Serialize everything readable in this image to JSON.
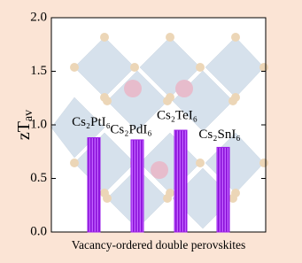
{
  "chart_data": {
    "type": "bar",
    "y_label": {
      "main": "zT",
      "sub": "av"
    },
    "x_label": "Vacancy-ordered double perovskites",
    "categories": [
      "Cs₂PtI₆",
      "Cs₂PdI₆",
      "Cs₂TeI₆",
      "Cs₂SnI₆"
    ],
    "values": [
      0.88,
      0.86,
      0.95,
      0.79
    ],
    "color": "#9b1fe8",
    "ylim": [
      0,
      2.0
    ],
    "yticks": [
      {
        "value": 0,
        "label": "0.0"
      },
      {
        "value": 0.5,
        "label": "0.5"
      },
      {
        "value": 1.0,
        "label": "1.0"
      },
      {
        "value": 1.5,
        "label": "1.5"
      },
      {
        "value": 2.0,
        "label": "2.0"
      }
    ]
  }
}
